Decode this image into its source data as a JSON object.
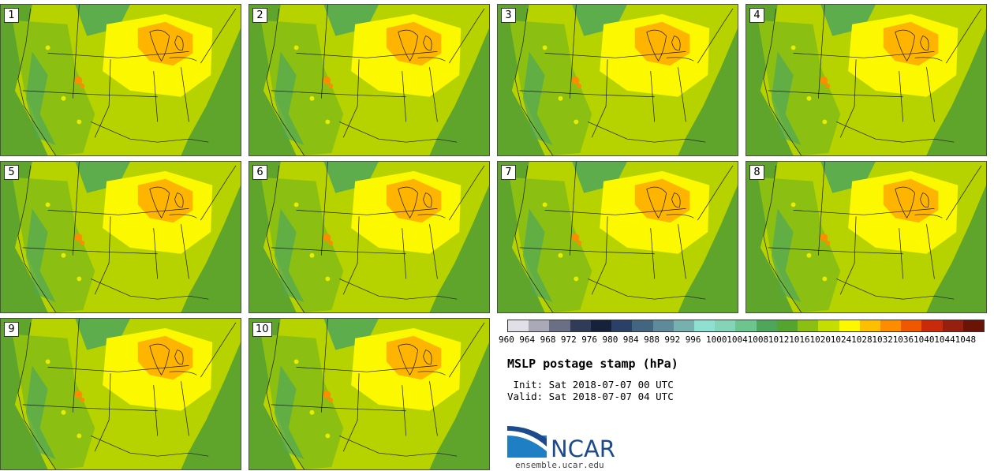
{
  "stamps": [
    {
      "label": "1"
    },
    {
      "label": "2"
    },
    {
      "label": "3"
    },
    {
      "label": "4"
    },
    {
      "label": "5"
    },
    {
      "label": "6"
    },
    {
      "label": "7"
    },
    {
      "label": "8"
    },
    {
      "label": "9"
    },
    {
      "label": "10"
    }
  ],
  "colorbar": {
    "colors": [
      "#e0e0e6",
      "#a9a9b8",
      "#6a6f85",
      "#2f3b57",
      "#16213a",
      "#2a4066",
      "#43657f",
      "#5e8a99",
      "#78b0b0",
      "#8ee0d0",
      "#84d4b8",
      "#6cc48e",
      "#4ea65a",
      "#55a42f",
      "#8bbf12",
      "#c3de00",
      "#fcf800",
      "#fcc000",
      "#fc8c00",
      "#f05800",
      "#c82a0a",
      "#962010",
      "#6a1408"
    ],
    "labels": [
      "960",
      "964",
      "968",
      "972",
      "976",
      "980",
      "984",
      "988",
      "992",
      "996",
      "1000",
      "1004",
      "1008",
      "1012",
      "1016",
      "1020",
      "1024",
      "1028",
      "1032",
      "1036",
      "1040",
      "1044",
      "1048"
    ]
  },
  "map_colors": {
    "ocean": "#5fa52c",
    "base": "#b6d300",
    "high": "#fcf800",
    "center": "#ffb400",
    "west": "#8bbf12",
    "mountains": "#4ea65a",
    "spot": "#fc8c00"
  },
  "title": "MSLP postage stamp (hPa)",
  "init": " Init: Sat 2018-07-07 00 UTC",
  "valid": "Valid: Sat 2018-07-07 04 UTC",
  "logo": {
    "text": "NCAR",
    "url": "ensemble.ucar.edu"
  }
}
